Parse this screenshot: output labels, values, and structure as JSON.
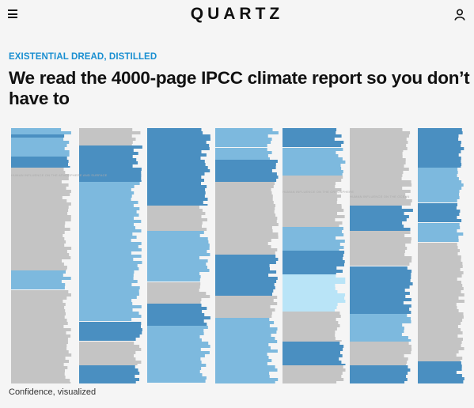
{
  "header": {
    "logo": "QUARTZ",
    "menu_icon": "hamburger-menu-icon",
    "user_icon": "user-icon"
  },
  "article": {
    "kicker": "EXISTENTIAL DREAD, DISTILLED",
    "headline": "We read the 4000-page IPCC climate report so you don’t have to",
    "caption": "Confidence, visualized"
  },
  "illustration": {
    "labels": [
      "HUMAN INFLUENCE ON THE ATMOSPHERE AND SURFACE",
      "HUMAN INFLUENCE ON THE CRYOSPHERE",
      "HUMAN INFLUENCE ON THE OCEAN"
    ]
  },
  "colors": {
    "kicker": "#1a8fd1",
    "dark_blue": "#4a8fc1",
    "light_blue": "#7db9de",
    "pale_blue": "#b9e4f7",
    "gray": "#c4c4c4"
  }
}
